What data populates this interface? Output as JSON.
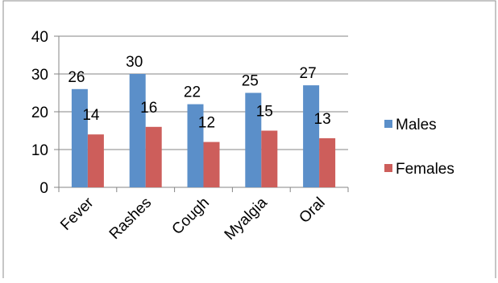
{
  "chart_data": {
    "type": "bar",
    "categories": [
      "Fever",
      "Rashes",
      "Cough",
      "Myalgia",
      "Oral"
    ],
    "series": [
      {
        "name": "Males",
        "values": [
          26,
          30,
          22,
          25,
          27
        ],
        "color": "#5B8FC9"
      },
      {
        "name": "Females",
        "values": [
          14,
          16,
          12,
          15,
          13
        ],
        "color": "#CD5E5B"
      }
    ],
    "ylim": [
      0,
      40
    ],
    "yticks": [
      "0",
      "10",
      "20",
      "30",
      "40"
    ],
    "grid": true,
    "legend_position": "right",
    "data_labels": true
  }
}
